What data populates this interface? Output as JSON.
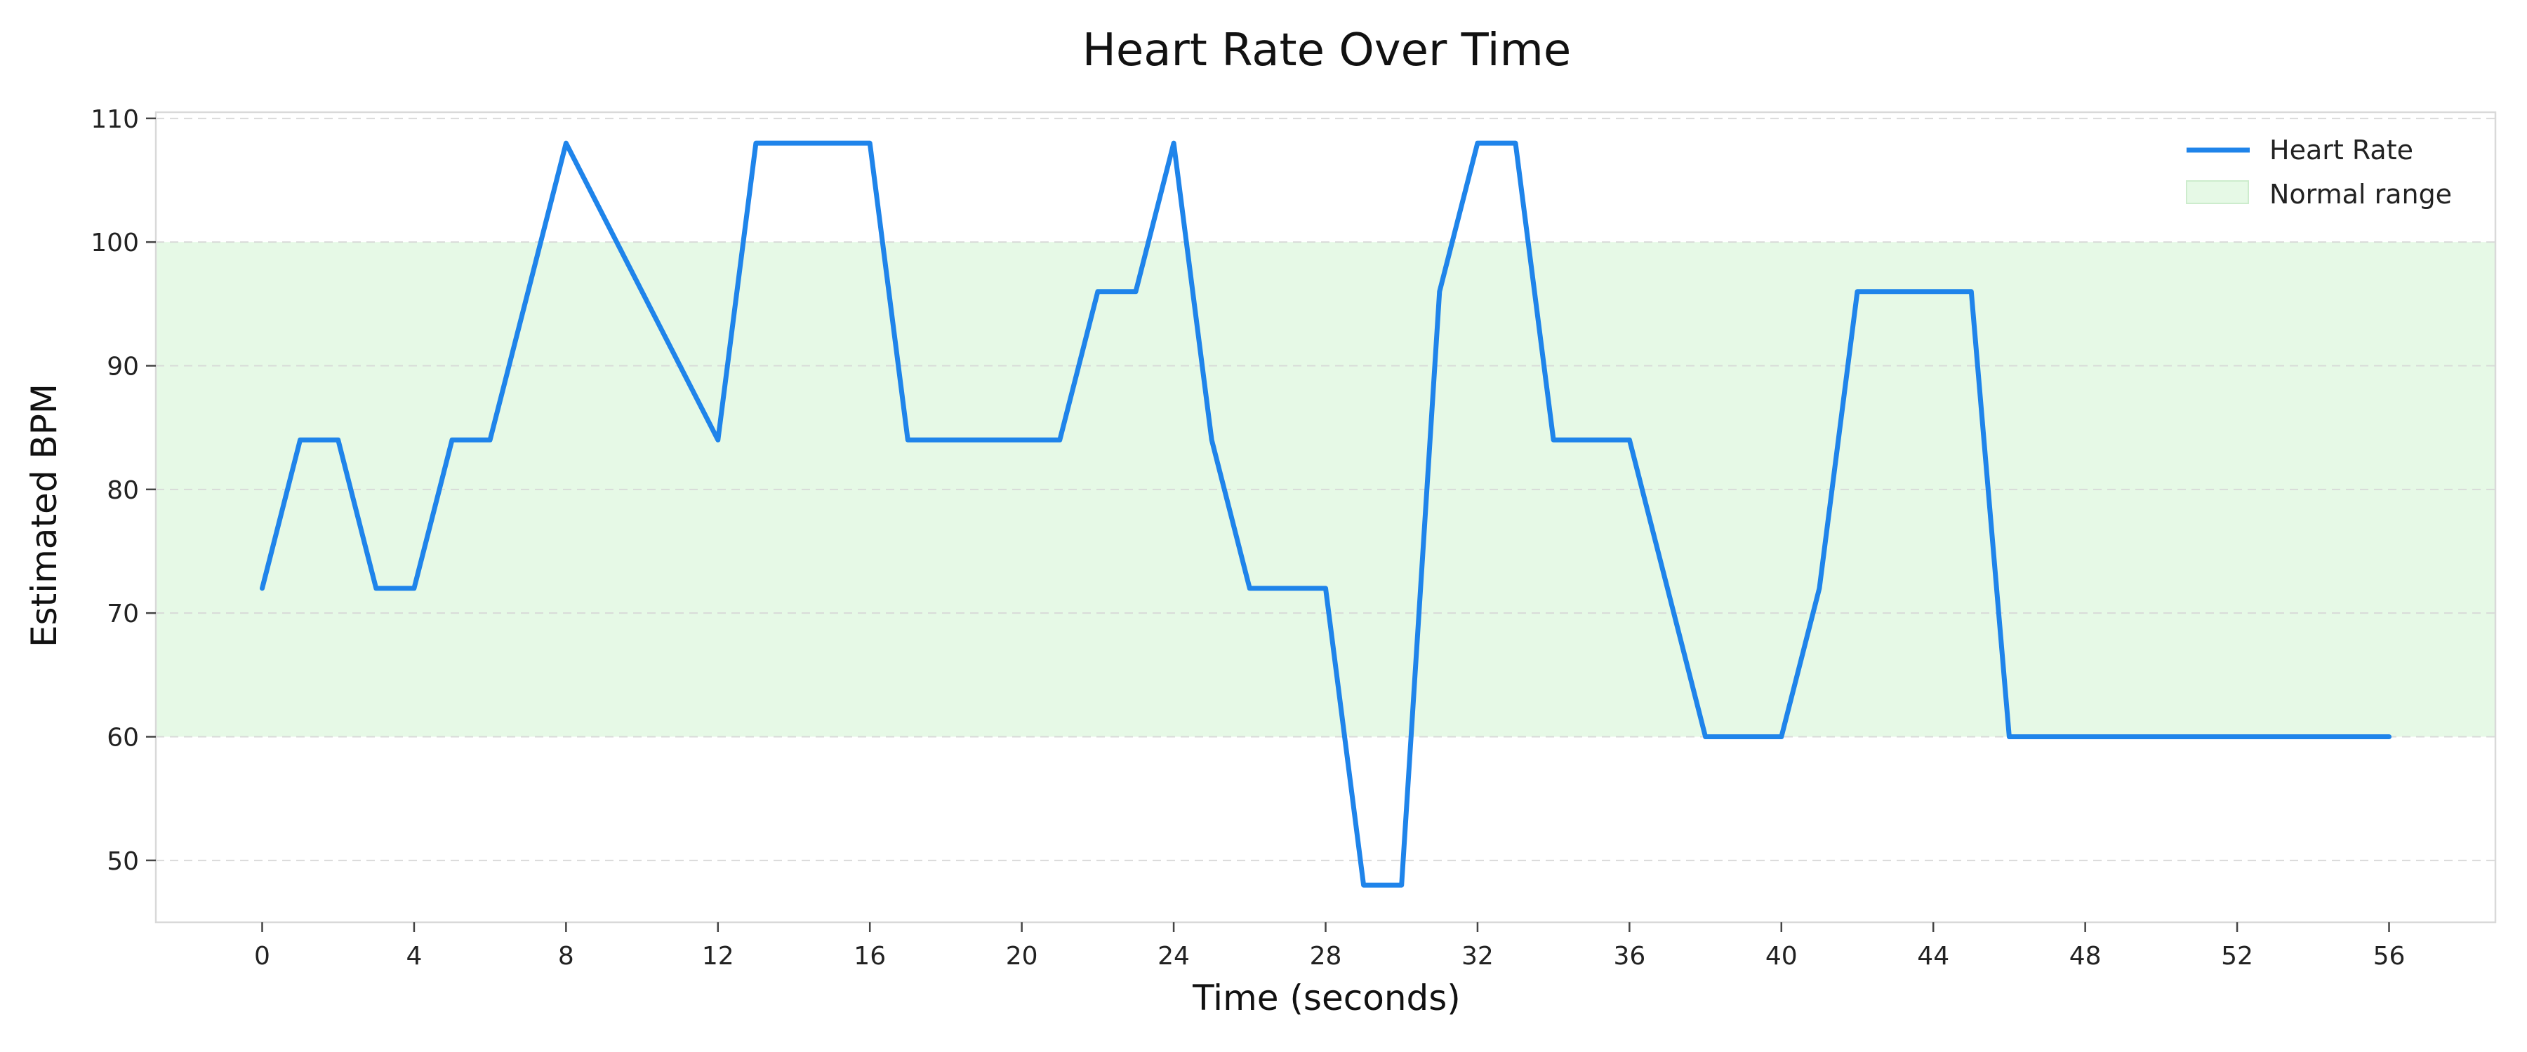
{
  "chart_data": {
    "type": "line",
    "title": "Heart Rate Over Time",
    "xlabel": "Time (seconds)",
    "ylabel": "Estimated BPM",
    "xlim": [
      -2.8,
      58.8
    ],
    "ylim": [
      45,
      110.5
    ],
    "x_ticks": [
      0,
      4,
      8,
      12,
      16,
      20,
      24,
      28,
      32,
      36,
      40,
      44,
      48,
      52,
      56
    ],
    "y_ticks": [
      50,
      60,
      70,
      80,
      90,
      100,
      110
    ],
    "grid": "horizontal dashed",
    "legend_position": "top-right",
    "series": [
      {
        "name": "Heart Rate",
        "color": "#1f84ea",
        "x": [
          0,
          1,
          2,
          3,
          4,
          5,
          6,
          7,
          8,
          9,
          10,
          11,
          12,
          13,
          14,
          15,
          16,
          17,
          18,
          19,
          20,
          21,
          22,
          23,
          24,
          25,
          26,
          27,
          28,
          29,
          30,
          31,
          32,
          33,
          34,
          35,
          36,
          37,
          38,
          39,
          40,
          41,
          42,
          43,
          44,
          45,
          46,
          47,
          48,
          49,
          50,
          51,
          52,
          53,
          54,
          55,
          56
        ],
        "values": [
          72,
          84,
          84,
          72,
          72,
          84,
          84,
          96,
          108,
          102,
          96,
          90,
          84,
          108,
          108,
          108,
          108,
          84,
          84,
          84,
          84,
          84,
          96,
          96,
          108,
          84,
          72,
          72,
          72,
          48,
          48,
          96,
          108,
          108,
          84,
          84,
          84,
          72,
          60,
          60,
          60,
          72,
          96,
          96,
          96,
          96,
          60,
          60,
          60,
          60,
          60,
          60,
          60,
          60,
          60,
          60,
          60
        ]
      }
    ],
    "bands": [
      {
        "name": "Normal range",
        "y0": 60,
        "y1": 100,
        "color": "#e6f9e6"
      }
    ]
  }
}
